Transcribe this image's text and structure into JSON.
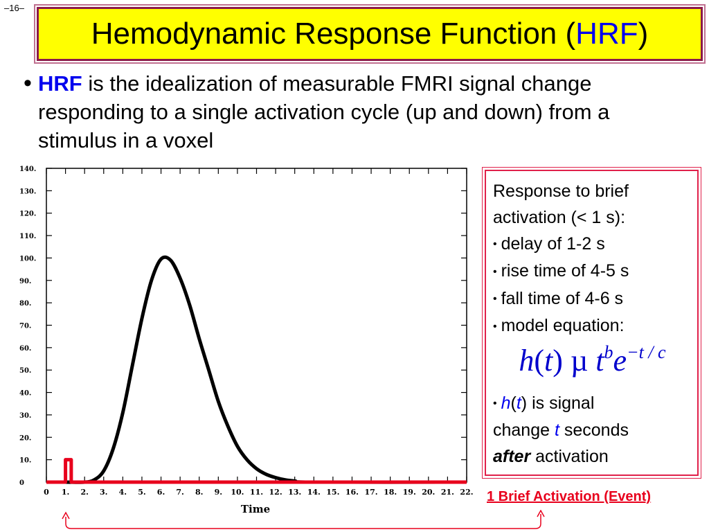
{
  "slide": {
    "number": "–16–"
  },
  "title": {
    "prefix": "Hemodynamic Response Function (",
    "acronym": "HRF",
    "suffix": ")"
  },
  "bullet": {
    "term": "HRF",
    "text": " is the idealization of measurable FMRI signal change responding to a single activation cycle (up and down) from a stimulus in a voxel"
  },
  "info_box": {
    "intro": "Response to brief activation (< 1 s):",
    "items": [
      "delay of 1-2 s",
      "rise time of 4-5 s",
      "fall time of 4-6 s",
      "model equation:"
    ],
    "equation": {
      "lhs": "h",
      "arg": "t",
      "prop": "µ",
      "base": "t",
      "exp1": "b",
      "e": "e",
      "exp2": "−t / c"
    },
    "note": {
      "h": "h",
      "t1": "t",
      "is_signal": " is signal",
      "change": "change ",
      "t2": "t",
      "seconds": " seconds",
      "after": "after",
      "activation": " activation"
    }
  },
  "event_label": "1 Brief Activation (Event)",
  "colors": {
    "accent_red": "#e8001c",
    "title_bg": "#ffff00",
    "title_border": "#8b1a4a",
    "link_blue": "#0000ee"
  },
  "chart_data": {
    "type": "line",
    "xlabel": "Time",
    "ylabel": "",
    "xlim": [
      0,
      22
    ],
    "ylim": [
      0,
      140
    ],
    "x_ticks": [
      "0",
      "1.",
      "2.",
      "3.",
      "4.",
      "5.",
      "6.",
      "7.",
      "8.",
      "9.",
      "10.",
      "11.",
      "12.",
      "13.",
      "14.",
      "15.",
      "16.",
      "17.",
      "18.",
      "19.",
      "20.",
      "21.",
      "22."
    ],
    "y_ticks": [
      "0",
      "10.",
      "20.",
      "30.",
      "40.",
      "50.",
      "60.",
      "70.",
      "80.",
      "90.",
      "100.",
      "110.",
      "120.",
      "130.",
      "140."
    ],
    "grid": false,
    "series": [
      {
        "name": "",
        "color": "#000000",
        "x": [
          0,
          1,
          2,
          2.5,
          3,
          3.5,
          4,
          4.5,
          5,
          5.5,
          6,
          6.5,
          7,
          7.5,
          8,
          8.5,
          9,
          9.5,
          10,
          10.5,
          11,
          11.5,
          12,
          12.5,
          13,
          14,
          22
        ],
        "y": [
          0,
          0,
          0,
          1,
          5,
          15,
          31,
          52,
          73,
          90,
          99.5,
          99,
          91,
          79,
          64,
          50,
          36,
          25,
          16,
          10,
          6,
          3.5,
          2,
          1,
          0.5,
          0,
          0
        ]
      },
      {
        "name": "",
        "color": "#e8001c",
        "x": [
          0,
          1,
          1,
          1.3,
          1.3,
          22
        ],
        "y": [
          0,
          0,
          10,
          10,
          0,
          0
        ]
      }
    ]
  }
}
